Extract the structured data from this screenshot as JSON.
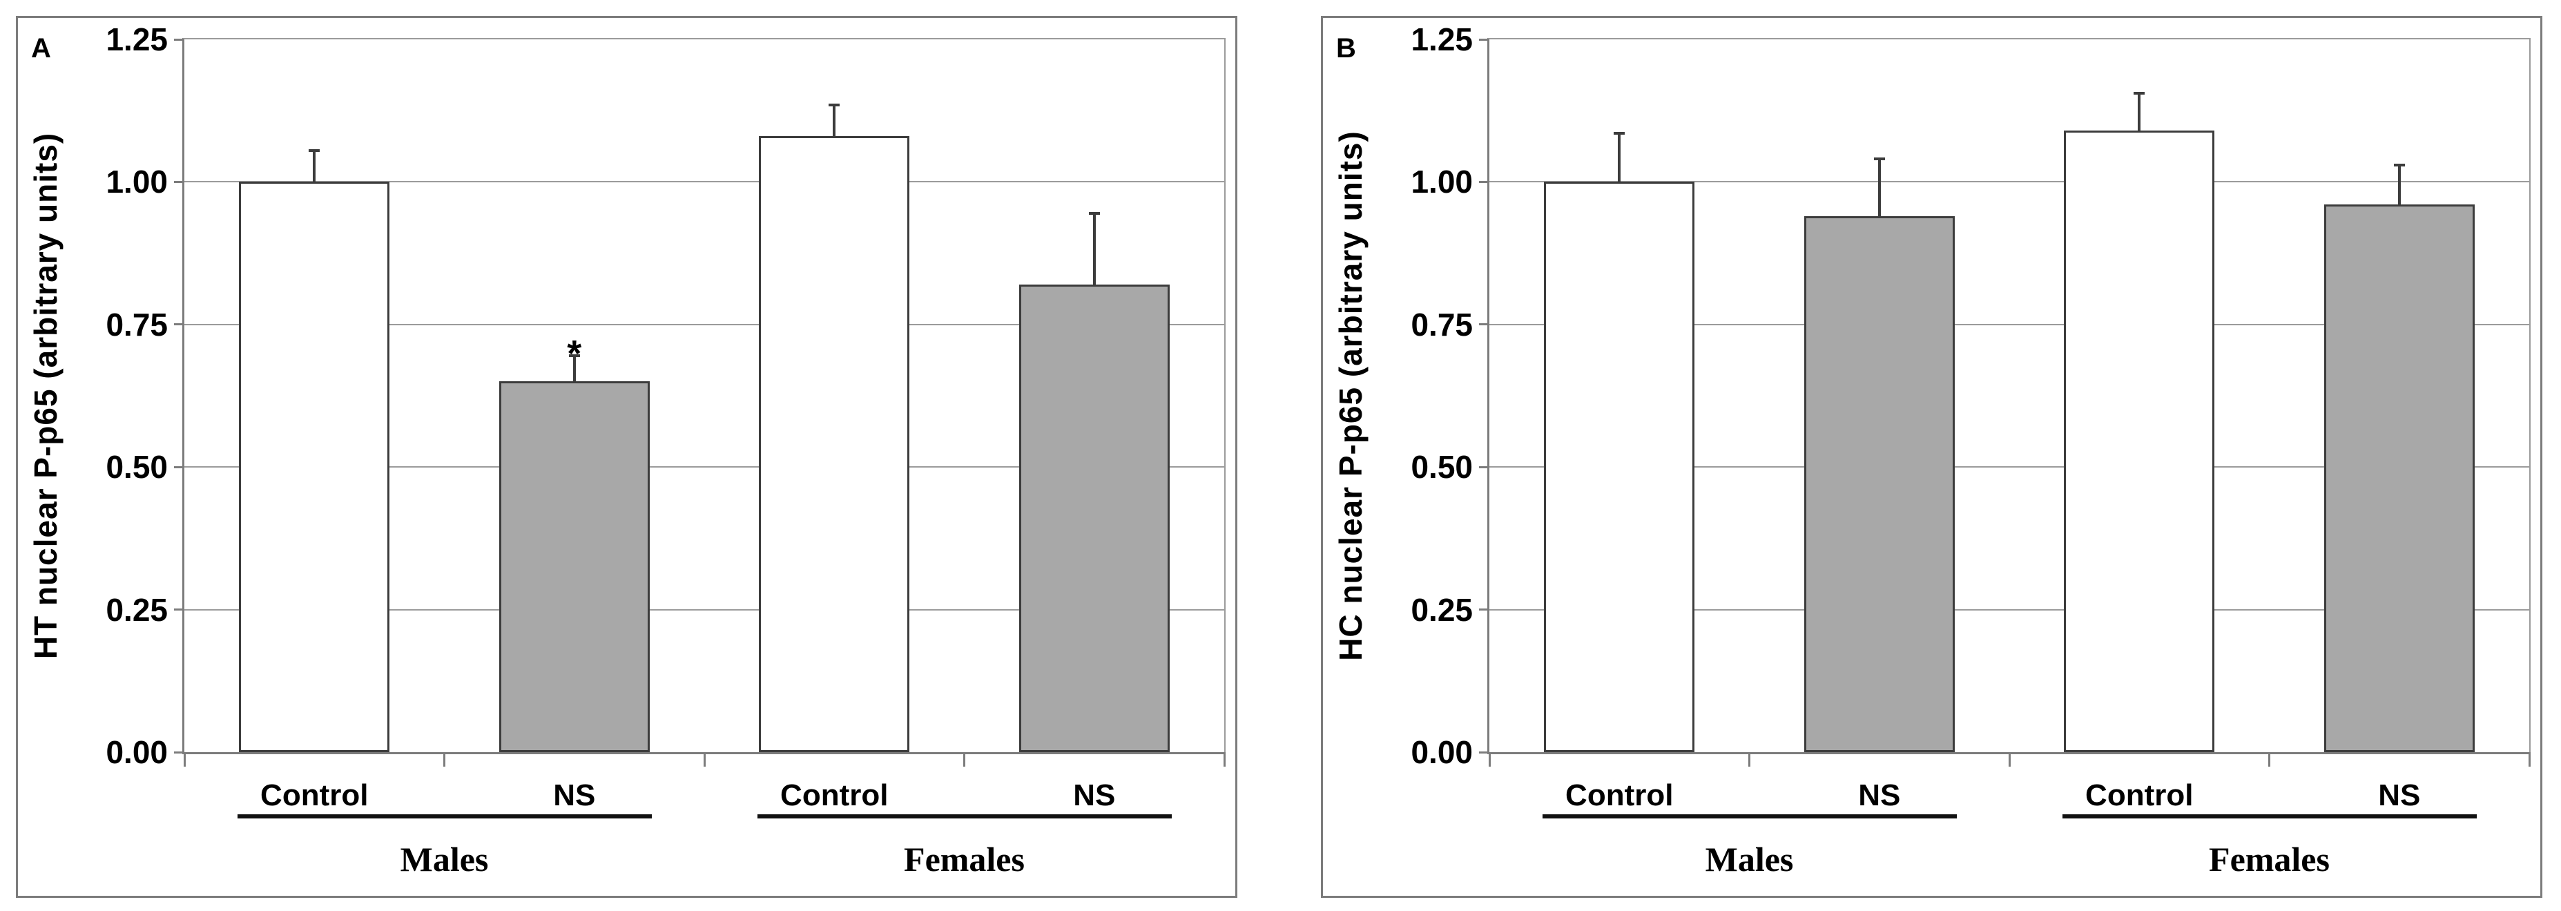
{
  "figure": {
    "background": "#ffffff",
    "panel_border_color": "#7c7c7c",
    "panel_count": 2
  },
  "style": {
    "bar_border": "#3c3c3c",
    "bar_fill_control": "#FFFFFF",
    "bar_fill_ns": "#A8A8A8",
    "grid_color": "#9b9b9b",
    "axis_color": "#7c7c7c",
    "error_color": "#3c3c3c",
    "underline_color": "#111111",
    "text_color": "#000000"
  },
  "chart_data": [
    {
      "type": "bar",
      "panel_label": "A",
      "title": "",
      "xlabel": "",
      "ylabel": "HT nuclear P-p65 (arbitrary units)",
      "ylim": [
        0,
        1.25
      ],
      "ytick_step": 0.25,
      "yticks": [
        "0.00",
        "0.25",
        "0.50",
        "0.75",
        "1.00",
        "1.25"
      ],
      "grid": true,
      "legend": "none",
      "groups": [
        "Males",
        "Females"
      ],
      "categories": [
        "Control",
        "NS",
        "Control",
        "NS"
      ],
      "values": [
        1.0,
        0.65,
        1.08,
        0.82
      ],
      "errors_plus": [
        0.055,
        0.045,
        0.055,
        0.125
      ],
      "bar_fills": [
        "#FFFFFF",
        "#A8A8A8",
        "#FFFFFF",
        "#A8A8A8"
      ],
      "annotations": [
        "",
        "*",
        "",
        ""
      ]
    },
    {
      "type": "bar",
      "panel_label": "B",
      "title": "",
      "xlabel": "",
      "ylabel": "HC nuclear P-p65 (arbitrary units)",
      "ylim": [
        0,
        1.25
      ],
      "ytick_step": 0.25,
      "yticks": [
        "0.00",
        "0.25",
        "0.50",
        "0.75",
        "1.00",
        "1.25"
      ],
      "grid": true,
      "legend": "none",
      "groups": [
        "Males",
        "Females"
      ],
      "categories": [
        "Control",
        "NS",
        "Control",
        "NS"
      ],
      "values": [
        1.0,
        0.94,
        1.09,
        0.96
      ],
      "errors_plus": [
        0.085,
        0.1,
        0.065,
        0.07
      ],
      "bar_fills": [
        "#FFFFFF",
        "#A8A8A8",
        "#FFFFFF",
        "#A8A8A8"
      ],
      "annotations": [
        "",
        "",
        "",
        ""
      ]
    }
  ]
}
